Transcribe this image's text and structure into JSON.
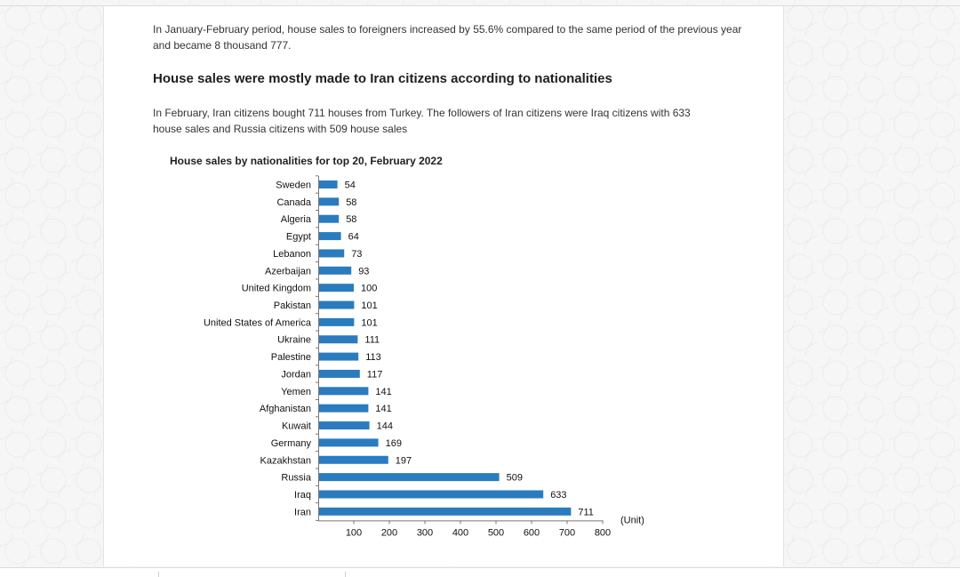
{
  "article": {
    "paragraph1": "In January-February period, house sales to foreigners increased by 55.6% compared to the same period of the previous year and became 8 thousand 777.",
    "heading": "House sales were mostly made to Iran citizens according to nationalities",
    "paragraph2": "In February, Iran citizens bought 711 houses from Turkey. The followers of Iran citizens were Iraq citizens with 633 house sales and Russia citizens with 509 house sales"
  },
  "chart_data": {
    "type": "bar",
    "orientation": "horizontal",
    "title": "House sales by nationalities for top 20, February 2022",
    "unit_label": "(Unit)",
    "categories": [
      "Sweden",
      "Canada",
      "Algeria",
      "Egypt",
      "Lebanon",
      "Azerbaijan",
      "United Kingdom",
      "Pakistan",
      "United States of America",
      "Ukraine",
      "Palestine",
      "Jordan",
      "Yemen",
      "Afghanistan",
      "Kuwait",
      "Germany",
      "Kazakhstan",
      "Russia",
      "Iraq",
      "Iran"
    ],
    "values": [
      54,
      58,
      58,
      64,
      73,
      93,
      100,
      101,
      101,
      111,
      113,
      117,
      141,
      141,
      144,
      169,
      197,
      509,
      633,
      711
    ],
    "xlim": [
      0,
      800
    ],
    "xticks": [
      100,
      200,
      300,
      400,
      500,
      600,
      700,
      800
    ],
    "grid": false,
    "bar_color": "#2b7bbf"
  }
}
